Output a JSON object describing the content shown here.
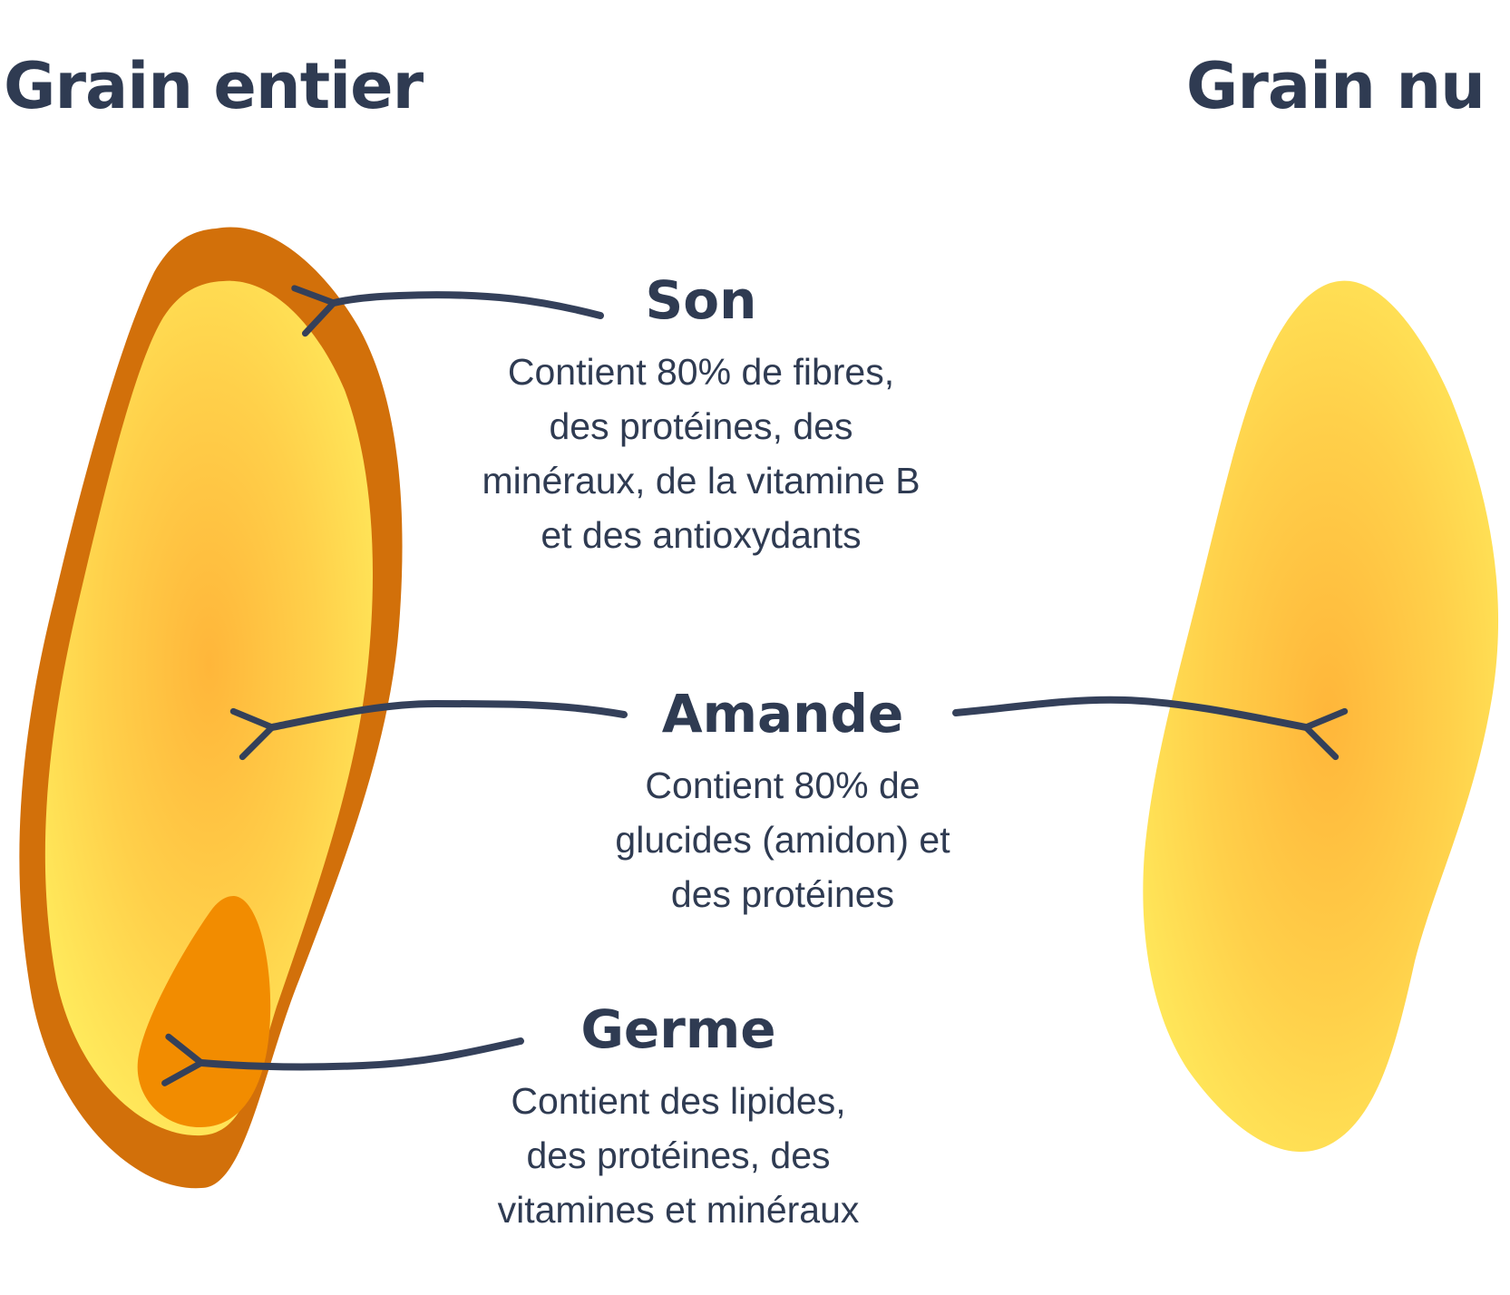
{
  "titles": {
    "left": "Grain entier",
    "right": "Grain nu"
  },
  "parts": {
    "son": {
      "heading": "Son",
      "lines": [
        "Contient 80% de fibres,",
        "des protéines, des",
        "minéraux, de la vitamine B",
        "et des antioxydants"
      ]
    },
    "amande": {
      "heading": "Amande",
      "lines": [
        "Contient 80% de",
        "glucides (amidon) et",
        "des protéines"
      ]
    },
    "germe": {
      "heading": "Germe",
      "lines": [
        "Contient des lipides,",
        "des protéines, des",
        "vitamines et minéraux"
      ]
    }
  },
  "colors": {
    "text": "#2f3b52",
    "bran": "#d2700a",
    "endosperm_light": "#ffe95a",
    "endosperm_core": "#ffbb40",
    "germ": "#f28c00",
    "arrow": "#34405a"
  }
}
